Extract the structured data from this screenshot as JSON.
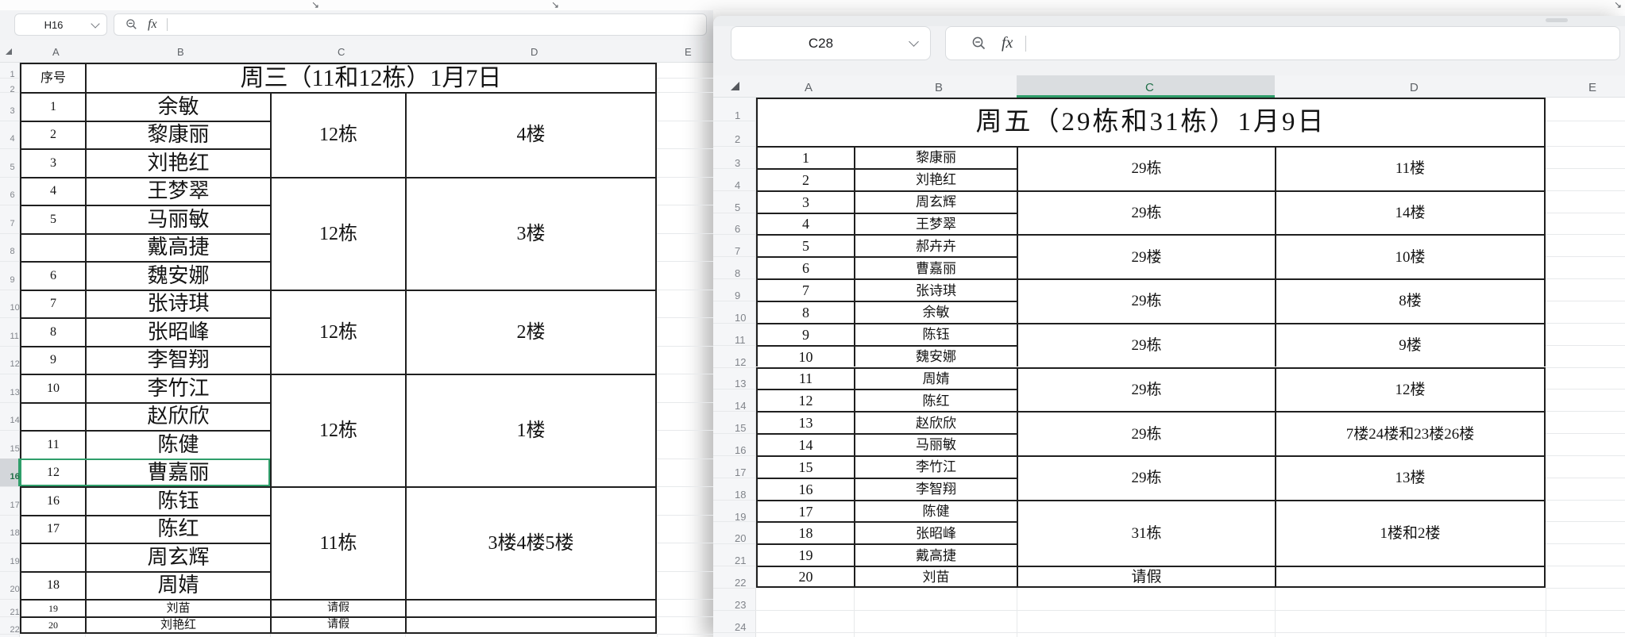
{
  "top_bar": {
    "resize_arrow": "↘"
  },
  "colors": {
    "accent_green": "#2f9e6a",
    "table_border": "#1f1f1f",
    "grid_line": "#e7e9eb"
  },
  "left_sheet": {
    "name_box": "H16",
    "formula_label": "fx",
    "column_headers": [
      "A",
      "B",
      "C",
      "D",
      "E"
    ],
    "visible_row_count": 23,
    "selected_row_header": "16",
    "serial_header": "序号",
    "title": "周三（11和12栋）1月7日",
    "rows": [
      {
        "r": 3,
        "n": "1",
        "name": "余敏"
      },
      {
        "r": 4,
        "n": "2",
        "name": "黎康丽"
      },
      {
        "r": 5,
        "n": "3",
        "name": "刘艳红"
      },
      {
        "r": 6,
        "n": "4",
        "name": "王梦翠"
      },
      {
        "r": 7,
        "n": "5",
        "name": "马丽敏"
      },
      {
        "r": 8,
        "n": "",
        "name": "戴高捷"
      },
      {
        "r": 9,
        "n": "6",
        "name": "魏安娜"
      },
      {
        "r": 10,
        "n": "7",
        "name": "张诗琪"
      },
      {
        "r": 11,
        "n": "8",
        "name": "张昭峰"
      },
      {
        "r": 12,
        "n": "9",
        "name": "李智翔"
      },
      {
        "r": 13,
        "n": "10",
        "name": "李竹江"
      },
      {
        "r": 14,
        "n": "",
        "name": "赵欣欣"
      },
      {
        "r": 15,
        "n": "11",
        "name": "陈健"
      },
      {
        "r": 16,
        "n": "12",
        "name": "曹嘉丽"
      },
      {
        "r": 17,
        "n": "16",
        "name": "陈钰"
      },
      {
        "r": 18,
        "n": "17",
        "name": "陈红"
      },
      {
        "r": 19,
        "n": "",
        "name": "周玄辉"
      },
      {
        "r": 20,
        "n": "18",
        "name": "周婧"
      },
      {
        "r": 21,
        "n": "19",
        "name": "刘苗",
        "small": true
      },
      {
        "r": 22,
        "n": "20",
        "name": "刘艳红",
        "small": true
      }
    ],
    "groups": [
      {
        "r1": 3,
        "r2": 5,
        "c": "12栋",
        "d": "4楼"
      },
      {
        "r1": 6,
        "r2": 9,
        "c": "12栋",
        "d": "3楼"
      },
      {
        "r1": 10,
        "r2": 12,
        "c": "12栋",
        "d": "2楼"
      },
      {
        "r1": 13,
        "r2": 16,
        "c": "12栋",
        "d": "1楼"
      },
      {
        "r1": 17,
        "r2": 20,
        "c": "11栋",
        "d": "3楼4楼5楼"
      },
      {
        "r1": 21,
        "r2": 21,
        "c": "请假",
        "d": "",
        "small": true
      },
      {
        "r1": 22,
        "r2": 22,
        "c": "请假",
        "d": "",
        "small": true
      }
    ]
  },
  "right_sheet": {
    "name_box": "C28",
    "formula_label": "fx",
    "column_headers": [
      "A",
      "B",
      "C",
      "D",
      "E"
    ],
    "visible_row_count": 24,
    "selected_column_header": "C",
    "title": "周五（29栋和31栋）1月9日",
    "rows": [
      {
        "r": 3,
        "n": "1",
        "name": "黎康丽"
      },
      {
        "r": 4,
        "n": "2",
        "name": "刘艳红"
      },
      {
        "r": 5,
        "n": "3",
        "name": "周玄辉"
      },
      {
        "r": 6,
        "n": "4",
        "name": "王梦翠"
      },
      {
        "r": 7,
        "n": "5",
        "name": "郝卉卉"
      },
      {
        "r": 8,
        "n": "6",
        "name": "曹嘉丽"
      },
      {
        "r": 9,
        "n": "7",
        "name": "张诗琪"
      },
      {
        "r": 10,
        "n": "8",
        "name": "余敏"
      },
      {
        "r": 11,
        "n": "9",
        "name": "陈钰"
      },
      {
        "r": 12,
        "n": "10",
        "name": "魏安娜"
      },
      {
        "r": 13,
        "n": "11",
        "name": "周婧"
      },
      {
        "r": 14,
        "n": "12",
        "name": "陈红"
      },
      {
        "r": 15,
        "n": "13",
        "name": "赵欣欣"
      },
      {
        "r": 16,
        "n": "14",
        "name": "马丽敏"
      },
      {
        "r": 17,
        "n": "15",
        "name": "李竹江"
      },
      {
        "r": 18,
        "n": "16",
        "name": "李智翔"
      },
      {
        "r": 19,
        "n": "17",
        "name": "陈健"
      },
      {
        "r": 20,
        "n": "18",
        "name": "张昭峰"
      },
      {
        "r": 21,
        "n": "19",
        "name": "戴高捷"
      },
      {
        "r": 22,
        "n": "20",
        "name": "刘苗"
      }
    ],
    "groups": [
      {
        "r1": 3,
        "r2": 4,
        "c": "29栋",
        "d": "11楼"
      },
      {
        "r1": 5,
        "r2": 6,
        "c": "29栋",
        "d": "14楼"
      },
      {
        "r1": 7,
        "r2": 8,
        "c": "29楼",
        "d": "10楼"
      },
      {
        "r1": 9,
        "r2": 10,
        "c": "29栋",
        "d": "8楼"
      },
      {
        "r1": 11,
        "r2": 12,
        "c": "29栋",
        "d": "9楼"
      },
      {
        "r1": 13,
        "r2": 14,
        "c": "29栋",
        "d": "12楼"
      },
      {
        "r1": 15,
        "r2": 16,
        "c": "29栋",
        "d": "7楼24楼和23楼26楼"
      },
      {
        "r1": 17,
        "r2": 18,
        "c": "29栋",
        "d": "13楼"
      },
      {
        "r1": 19,
        "r2": 21,
        "c": "31栋",
        "d": "1楼和2楼"
      },
      {
        "r1": 22,
        "r2": 22,
        "c": "请假",
        "d": ""
      }
    ]
  }
}
